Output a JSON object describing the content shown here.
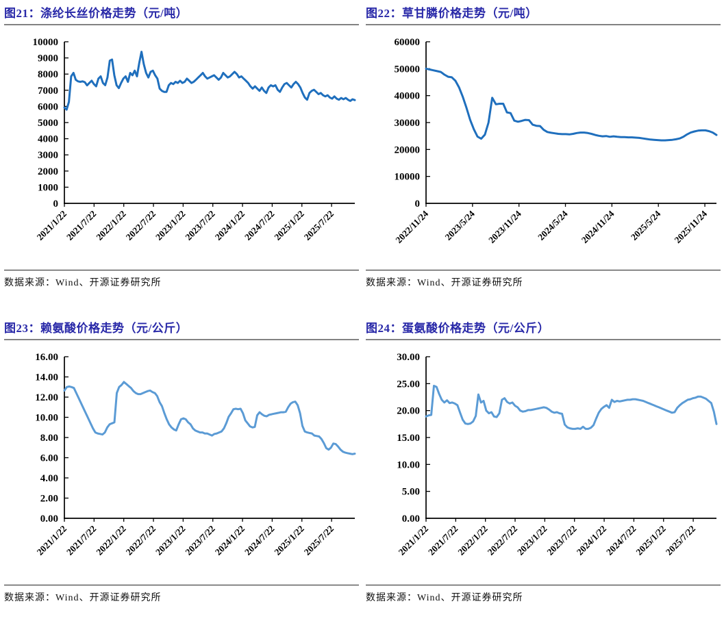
{
  "colors": {
    "title_text": "#2828A8",
    "axis": "#000000",
    "line_dark_blue": "#1F6FBD",
    "line_light_blue": "#5B9BD5"
  },
  "figures": [
    {
      "title": "图21：涤纶长丝价格走势（元/吨）",
      "source": "数据来源：Wind、开源证券研究所"
    },
    {
      "title": "图22：草甘膦价格走势（元/吨）",
      "source": "数据来源：Wind、开源证券研究所"
    },
    {
      "title": "图23：赖氨酸价格走势（元/公斤）",
      "source": "数据来源：Wind、开源证券研究所"
    },
    {
      "title": "图24：蛋氨酸价格走势（元/公斤）",
      "source": "数据来源：Wind、开源证券研究所"
    }
  ],
  "chart_data": [
    {
      "type": "line",
      "title": "图21：涤纶长丝价格走势（元/吨）",
      "line_color": "#1F6FBD",
      "grid": false,
      "legend": "none",
      "ylim": [
        0,
        10000
      ],
      "ytick_labels": [
        "0",
        "1000",
        "2000",
        "3000",
        "4000",
        "5000",
        "6000",
        "7000",
        "8000",
        "9000",
        "10000"
      ],
      "xtick_labels": [
        "2021/1/22",
        "2021/7/22",
        "2022/1/22",
        "2022/7/22",
        "2023/1/22",
        "2023/7/22",
        "2024/1/22",
        "2024/7/22",
        "2025/1/22",
        "2025/7/22"
      ],
      "xtick_end_frac": 0.92,
      "values": [
        5930,
        5800,
        6280,
        7860,
        8070,
        7650,
        7550,
        7520,
        7550,
        7500,
        7300,
        7450,
        7590,
        7380,
        7240,
        7720,
        7860,
        7450,
        7310,
        7790,
        8830,
        8900,
        7930,
        7310,
        7130,
        7450,
        7720,
        7860,
        7520,
        8070,
        7930,
        8210,
        7860,
        8690,
        9380,
        8620,
        8070,
        7790,
        8140,
        8210,
        7930,
        7720,
        7100,
        6960,
        6900,
        6900,
        7310,
        7450,
        7380,
        7520,
        7450,
        7590,
        7450,
        7520,
        7720,
        7590,
        7450,
        7520,
        7650,
        7790,
        7930,
        8070,
        7860,
        7720,
        7790,
        7860,
        7930,
        7790,
        7650,
        7790,
        8070,
        7930,
        7790,
        7860,
        8000,
        8140,
        8000,
        7790,
        7860,
        7720,
        7590,
        7450,
        7240,
        7100,
        7240,
        7100,
        6960,
        7170,
        6960,
        6830,
        7170,
        7310,
        7240,
        7310,
        7030,
        6900,
        7170,
        7380,
        7450,
        7310,
        7170,
        7380,
        7520,
        7380,
        7170,
        6830,
        6550,
        6410,
        6830,
        6960,
        7030,
        6900,
        6760,
        6830,
        6690,
        6620,
        6690,
        6550,
        6480,
        6620,
        6480,
        6410,
        6520,
        6440,
        6520,
        6410,
        6340,
        6440,
        6390
      ]
    },
    {
      "type": "line",
      "title": "图22：草甘膦价格走势（元/吨）",
      "line_color": "#1F6FBD",
      "grid": false,
      "legend": "none",
      "ylim": [
        0,
        60000
      ],
      "ytick_labels": [
        "0",
        "10000",
        "20000",
        "30000",
        "40000",
        "50000",
        "60000"
      ],
      "xtick_labels": [
        "2022/11/24",
        "2023/5/24",
        "2023/11/24",
        "2024/5/24",
        "2024/11/24",
        "2025/5/24",
        "2025/11/24"
      ],
      "xtick_end_frac": 0.96,
      "values": [
        50000,
        49700,
        49400,
        49100,
        48800,
        47800,
        47000,
        46800,
        45500,
        43000,
        39500,
        35500,
        31000,
        27500,
        24800,
        24000,
        25500,
        30000,
        39200,
        36800,
        37000,
        37000,
        33800,
        33500,
        30700,
        30300,
        30600,
        31000,
        30900,
        29200,
        28800,
        28700,
        27300,
        26500,
        26200,
        26000,
        25800,
        25700,
        25700,
        25600,
        25800,
        26100,
        26300,
        26300,
        26100,
        25800,
        25400,
        25100,
        24900,
        25000,
        24700,
        24900,
        24700,
        24600,
        24600,
        24500,
        24500,
        24400,
        24300,
        24100,
        23900,
        23700,
        23600,
        23500,
        23400,
        23400,
        23500,
        23600,
        23800,
        24100,
        24700,
        25600,
        26300,
        26700,
        27000,
        27100,
        27100,
        26800,
        26300,
        25400
      ]
    },
    {
      "type": "line",
      "title": "图23：赖氨酸价格走势（元/公斤）",
      "line_color": "#5B9BD5",
      "grid": false,
      "legend": "none",
      "ylim": [
        0,
        16
      ],
      "ytick_labels": [
        "0.00",
        "2.00",
        "4.00",
        "6.00",
        "8.00",
        "10.00",
        "12.00",
        "14.00",
        "16.00"
      ],
      "xtick_labels": [
        "2021/1/22",
        "2021/7/22",
        "2022/1/22",
        "2022/7/22",
        "2023/1/22",
        "2023/7/22",
        "2024/1/22",
        "2024/7/22",
        "2025/1/22",
        "2025/7/22"
      ],
      "xtick_end_frac": 0.92,
      "values": [
        12.65,
        13.0,
        13.05,
        13.0,
        12.9,
        12.4,
        11.9,
        11.4,
        10.9,
        10.4,
        9.9,
        9.4,
        8.9,
        8.5,
        8.4,
        8.35,
        8.3,
        8.5,
        9.0,
        9.3,
        9.4,
        9.5,
        12.4,
        13.0,
        13.2,
        13.5,
        13.3,
        13.1,
        12.9,
        12.6,
        12.4,
        12.3,
        12.3,
        12.4,
        12.5,
        12.6,
        12.65,
        12.5,
        12.4,
        12.1,
        11.5,
        11.1,
        10.4,
        9.8,
        9.3,
        9.0,
        8.8,
        8.7,
        9.3,
        9.8,
        9.9,
        9.8,
        9.5,
        9.3,
        8.9,
        8.7,
        8.6,
        8.5,
        8.5,
        8.4,
        8.4,
        8.3,
        8.2,
        8.35,
        8.4,
        8.5,
        8.6,
        8.9,
        9.4,
        10.05,
        10.4,
        10.8,
        10.85,
        10.8,
        10.85,
        10.4,
        9.7,
        9.4,
        9.1,
        9.0,
        9.05,
        10.2,
        10.5,
        10.3,
        10.15,
        10.1,
        10.25,
        10.3,
        10.35,
        10.4,
        10.45,
        10.5,
        10.5,
        10.55,
        11.0,
        11.35,
        11.5,
        11.55,
        11.2,
        10.4,
        9.15,
        8.6,
        8.5,
        8.45,
        8.4,
        8.2,
        8.15,
        8.1,
        7.85,
        7.45,
        6.95,
        6.8,
        7.0,
        7.4,
        7.35,
        7.1,
        6.8,
        6.6,
        6.5,
        6.45,
        6.4,
        6.35,
        6.4
      ]
    },
    {
      "type": "line",
      "title": "图24：蛋氨酸价格走势（元/公斤）",
      "line_color": "#5B9BD5",
      "grid": false,
      "legend": "none",
      "ylim": [
        0,
        30
      ],
      "ytick_labels": [
        "0.00",
        "5.00",
        "10.00",
        "15.00",
        "20.00",
        "25.00",
        "30.00"
      ],
      "xtick_labels": [
        "2021/1/22",
        "2021/7/22",
        "2022/1/22",
        "2022/7/22",
        "2023/1/22",
        "2023/7/22",
        "2024/1/22",
        "2024/7/22",
        "2025/1/22",
        "2025/7/22"
      ],
      "xtick_end_frac": 0.92,
      "values": [
        18.9,
        19.1,
        19.2,
        24.6,
        24.4,
        23.1,
        22.0,
        21.5,
        21.9,
        21.4,
        21.5,
        21.3,
        21.0,
        19.6,
        18.3,
        17.6,
        17.5,
        17.6,
        18.0,
        19.0,
        23.0,
        21.5,
        21.8,
        20.0,
        19.5,
        19.7,
        18.9,
        18.8,
        19.5,
        22.0,
        22.3,
        21.6,
        21.3,
        21.5,
        20.9,
        20.6,
        20.0,
        19.8,
        19.9,
        20.1,
        20.1,
        20.2,
        20.3,
        20.4,
        20.5,
        20.6,
        20.5,
        20.2,
        19.8,
        19.6,
        19.7,
        19.5,
        19.4,
        17.4,
        16.9,
        16.7,
        16.6,
        16.6,
        16.7,
        16.6,
        17.0,
        16.6,
        16.6,
        16.8,
        17.3,
        18.5,
        19.6,
        20.3,
        20.7,
        21.0,
        20.5,
        22.0,
        21.6,
        21.8,
        21.7,
        21.8,
        21.9,
        22.0,
        22.0,
        22.1,
        22.1,
        22.0,
        21.9,
        21.8,
        21.6,
        21.4,
        21.2,
        21.0,
        20.8,
        20.6,
        20.4,
        20.2,
        20.0,
        19.8,
        19.6,
        19.7,
        20.5,
        21.0,
        21.4,
        21.7,
        22.0,
        22.1,
        22.3,
        22.4,
        22.6,
        22.6,
        22.4,
        22.2,
        21.8,
        21.4,
        19.8,
        17.5
      ]
    }
  ]
}
